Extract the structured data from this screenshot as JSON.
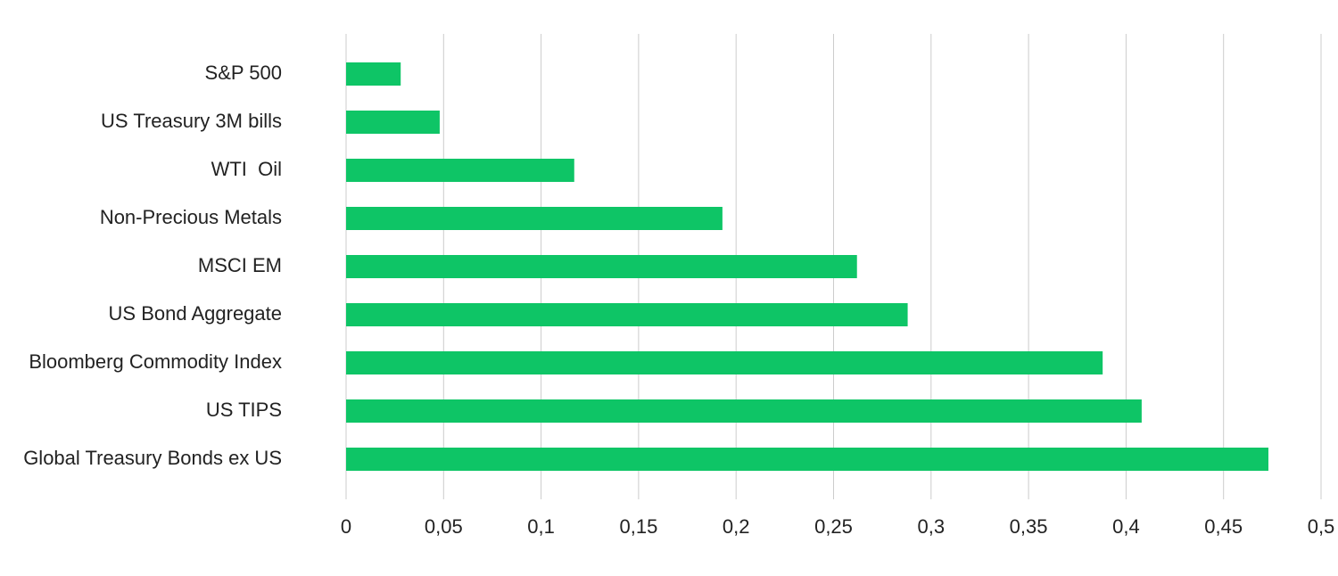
{
  "chart_data": {
    "type": "barh",
    "categories": [
      "S&P 500",
      "US Treasury 3M bills",
      "WTI  Oil",
      "Non-Precious Metals",
      "MSCI EM",
      "US Bond Aggregate",
      "Bloomberg Commodity Index",
      "US TIPS",
      "Global Treasury Bonds ex US"
    ],
    "values": [
      0.028,
      0.048,
      0.117,
      0.193,
      0.262,
      0.288,
      0.388,
      0.408,
      0.473
    ],
    "color": "#0ec566",
    "xlim": [
      0,
      0.5
    ],
    "xticks": [
      0,
      {
        "value": 0.05,
        "label": "0,05"
      },
      {
        "value": 0.1,
        "label": "0,1"
      },
      {
        "value": 0.15,
        "label": "0,15"
      },
      {
        "value": 0.2,
        "label": "0,2"
      },
      {
        "value": 0.25,
        "label": "0,25"
      },
      {
        "value": 0.3,
        "label": "0,3"
      },
      {
        "value": 0.35,
        "label": "0,35"
      },
      {
        "value": 0.4,
        "label": "0,4"
      },
      {
        "value": 0.45,
        "label": "0,45"
      },
      {
        "value": 0.5,
        "label": "0,5"
      }
    ],
    "grid": true
  }
}
